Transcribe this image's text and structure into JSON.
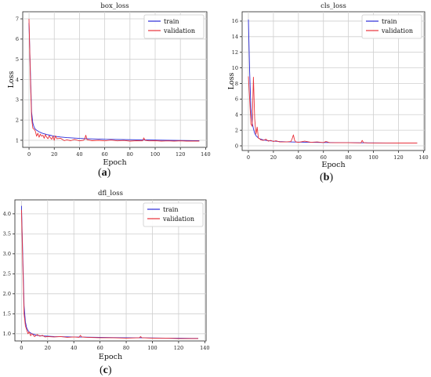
{
  "captions": [
    "a",
    "b",
    "c"
  ],
  "chart_data": [
    {
      "type": "line",
      "title": "box_loss",
      "xlabel": "Epoch",
      "ylabel": "Loss",
      "xlim": [
        -5,
        141
      ],
      "ylim": [
        0.65,
        7.35
      ],
      "xticks": [
        0,
        20,
        40,
        60,
        80,
        100,
        120,
        140
      ],
      "yticks": [
        1,
        2,
        3,
        4,
        5,
        6,
        7
      ],
      "grid": true,
      "legend": "top-right",
      "series": [
        {
          "name": "train",
          "color": "#2b2bd8",
          "x": [
            0,
            1,
            2,
            3,
            4,
            5,
            6,
            8,
            10,
            12,
            15,
            18,
            20,
            25,
            30,
            35,
            40,
            45,
            50,
            55,
            60,
            70,
            80,
            90,
            100,
            110,
            120,
            130,
            135
          ],
          "y": [
            6.8,
            4.5,
            2.4,
            1.85,
            1.65,
            1.55,
            1.5,
            1.42,
            1.36,
            1.32,
            1.27,
            1.23,
            1.2,
            1.16,
            1.13,
            1.11,
            1.09,
            1.08,
            1.07,
            1.06,
            1.05,
            1.04,
            1.03,
            1.02,
            1.01,
            1.0,
            0.99,
            0.98,
            0.98
          ]
        },
        {
          "name": "validation",
          "color": "#e8313a",
          "x": [
            0,
            1,
            2,
            3,
            4,
            5,
            6,
            7,
            8,
            9,
            10,
            11,
            12,
            13,
            14,
            15,
            16,
            17,
            18,
            19,
            20,
            21,
            22,
            25,
            28,
            30,
            33,
            36,
            40,
            43,
            44,
            45,
            46,
            50,
            55,
            60,
            65,
            70,
            75,
            80,
            85,
            90,
            91,
            92,
            95,
            100,
            105,
            110,
            115,
            120,
            125,
            130,
            135
          ],
          "y": [
            7.0,
            4.2,
            2.1,
            1.6,
            1.55,
            1.45,
            1.2,
            1.35,
            1.15,
            1.3,
            1.2,
            1.25,
            1.1,
            1.28,
            1.15,
            1.08,
            1.22,
            1.12,
            1.05,
            1.2,
            1.0,
            1.22,
            1.08,
            1.1,
            0.98,
            1.02,
            0.98,
            1.04,
            0.97,
            1.0,
            1.05,
            1.25,
            1.03,
            0.98,
            1.0,
            0.97,
            1.01,
            0.97,
            0.99,
            0.96,
            0.98,
            0.97,
            1.12,
            1.0,
            0.97,
            0.98,
            0.96,
            0.97,
            0.96,
            0.97,
            0.96,
            0.96,
            0.96
          ]
        }
      ]
    },
    {
      "type": "line",
      "title": "cls_loss",
      "xlabel": "Epoch",
      "ylabel": "Loss",
      "xlim": [
        -5,
        141
      ],
      "ylim": [
        -0.6,
        17.2
      ],
      "xticks": [
        0,
        20,
        40,
        60,
        80,
        100,
        120,
        140
      ],
      "yticks": [
        0,
        2,
        4,
        6,
        8,
        10,
        12,
        14,
        16
      ],
      "grid": true,
      "legend": "top-right",
      "series": [
        {
          "name": "train",
          "color": "#2b2bd8",
          "x": [
            0,
            1,
            2,
            3,
            4,
            5,
            6,
            8,
            10,
            12,
            15,
            20,
            25,
            30,
            40,
            50,
            60,
            70,
            80,
            90,
            100,
            110,
            120,
            130,
            135
          ],
          "y": [
            16.2,
            9.5,
            4.8,
            3.0,
            2.2,
            1.6,
            1.3,
            1.0,
            0.85,
            0.75,
            0.68,
            0.6,
            0.55,
            0.52,
            0.48,
            0.45,
            0.43,
            0.42,
            0.4,
            0.39,
            0.38,
            0.37,
            0.36,
            0.35,
            0.35
          ]
        },
        {
          "name": "validation",
          "color": "#e8313a",
          "x": [
            0,
            1,
            2,
            3,
            4,
            5,
            6,
            7,
            8,
            9,
            10,
            12,
            14,
            16,
            18,
            20,
            22,
            25,
            30,
            34,
            35,
            36,
            37,
            38,
            40,
            45,
            50,
            55,
            60,
            62,
            65,
            70,
            80,
            90,
            91,
            92,
            95,
            100,
            110,
            120,
            130,
            135
          ],
          "y": [
            8.9,
            6.0,
            2.8,
            2.5,
            8.8,
            3.5,
            1.5,
            2.4,
            1.0,
            0.9,
            0.75,
            0.7,
            0.85,
            0.6,
            0.7,
            0.55,
            0.65,
            0.5,
            0.5,
            0.55,
            0.9,
            1.4,
            0.7,
            0.5,
            0.45,
            0.6,
            0.45,
            0.5,
            0.42,
            0.55,
            0.42,
            0.4,
            0.4,
            0.38,
            0.7,
            0.42,
            0.38,
            0.37,
            0.37,
            0.36,
            0.36,
            0.36
          ]
        }
      ]
    },
    {
      "type": "line",
      "title": "dfl_loss",
      "xlabel": "Epoch",
      "ylabel": "",
      "xlim": [
        -5,
        141
      ],
      "ylim": [
        0.82,
        4.35
      ],
      "xticks": [
        0,
        20,
        40,
        60,
        80,
        100,
        120,
        140
      ],
      "yticks": [
        1.0,
        1.5,
        2.0,
        2.5,
        3.0,
        3.5,
        4.0
      ],
      "grid": true,
      "legend": "top-right",
      "series": [
        {
          "name": "train",
          "color": "#2b2bd8",
          "x": [
            0,
            1,
            2,
            3,
            4,
            5,
            6,
            8,
            10,
            12,
            15,
            20,
            25,
            30,
            40,
            50,
            60,
            70,
            80,
            90,
            100,
            110,
            120,
            130,
            135
          ],
          "y": [
            4.2,
            3.0,
            1.7,
            1.3,
            1.15,
            1.08,
            1.04,
            1.0,
            0.98,
            0.96,
            0.95,
            0.94,
            0.93,
            0.925,
            0.92,
            0.915,
            0.91,
            0.905,
            0.9,
            0.9,
            0.895,
            0.89,
            0.89,
            0.885,
            0.885
          ]
        },
        {
          "name": "validation",
          "color": "#e8313a",
          "x": [
            0,
            1,
            2,
            3,
            4,
            5,
            6,
            7,
            8,
            9,
            10,
            12,
            14,
            16,
            18,
            20,
            25,
            30,
            35,
            40,
            44,
            45,
            46,
            50,
            60,
            70,
            80,
            90,
            91,
            92,
            100,
            110,
            120,
            130,
            135
          ],
          "y": [
            4.1,
            2.8,
            1.5,
            1.2,
            1.1,
            1.0,
            1.05,
            0.95,
            1.0,
            0.97,
            0.93,
            0.98,
            0.94,
            0.96,
            0.92,
            0.93,
            0.92,
            0.93,
            0.91,
            0.92,
            0.91,
            0.96,
            0.92,
            0.91,
            0.9,
            0.9,
            0.89,
            0.9,
            0.93,
            0.9,
            0.89,
            0.89,
            0.88,
            0.88,
            0.88
          ]
        }
      ]
    }
  ]
}
